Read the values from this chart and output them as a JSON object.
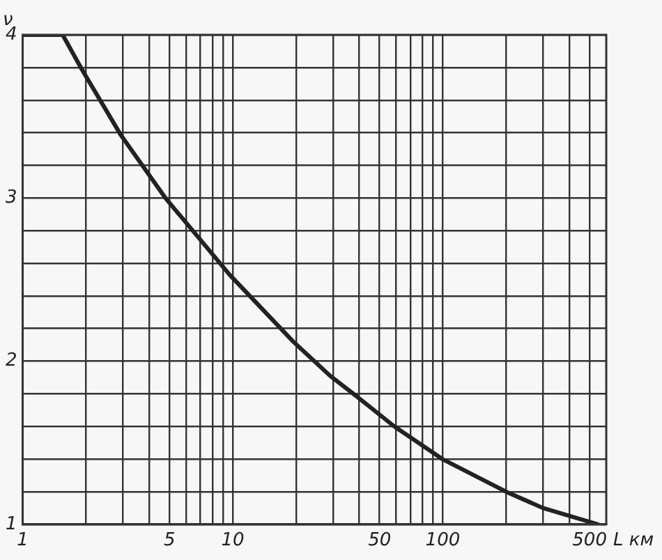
{
  "chart_data": {
    "type": "line",
    "xlabel": "L км",
    "ylabel": "ν",
    "log": "x",
    "x": [
      1,
      1.55,
      1.91,
      2.92,
      4.78,
      9.66,
      19.4,
      29.1,
      39.3,
      58.8,
      99.5,
      200,
      300,
      548
    ],
    "series": [
      {
        "color": "#222222",
        "values": [
          4,
          4,
          3.79,
          3.39,
          3.0,
          2.53,
          2.12,
          1.91,
          1.78,
          1.6,
          1.4,
          1.2,
          1.1,
          1.0
        ]
      }
    ],
    "xlim": [
      1,
      600
    ],
    "ylim": [
      1,
      4
    ],
    "xticks": [
      1,
      {
        "value": 2,
        "label": null
      },
      {
        "value": 3,
        "label": null
      },
      {
        "value": 4,
        "label": null
      },
      5,
      {
        "value": 6,
        "label": null
      },
      {
        "value": 7,
        "label": null
      },
      {
        "value": 8,
        "label": null
      },
      {
        "value": 9,
        "label": null
      },
      10,
      {
        "value": 20,
        "label": null
      },
      {
        "value": 30,
        "label": null
      },
      {
        "value": 40,
        "label": null
      },
      50,
      {
        "value": 60,
        "label": null
      },
      {
        "value": 70,
        "label": null
      },
      {
        "value": 80,
        "label": null
      },
      {
        "value": 90,
        "label": null
      },
      100,
      {
        "value": 200,
        "label": null
      },
      {
        "value": 300,
        "label": null
      },
      {
        "value": 400,
        "label": null
      },
      500
    ],
    "yticks": [
      1,
      {
        "value": 1.2,
        "label": null
      },
      {
        "value": 1.4,
        "label": null
      },
      {
        "value": 1.6,
        "label": null
      },
      {
        "value": 1.8,
        "label": null
      },
      2,
      {
        "value": 2.2,
        "label": null
      },
      {
        "value": 2.4,
        "label": null
      },
      {
        "value": 2.6,
        "label": null
      },
      {
        "value": 2.8,
        "label": null
      },
      3,
      {
        "value": 3.2,
        "label": null
      },
      {
        "value": 3.4,
        "label": null
      },
      {
        "value": 3.6,
        "label": null
      },
      {
        "value": 3.8,
        "label": null
      },
      4
    ],
    "grid": true,
    "marker": "none",
    "line_style": "solid",
    "legend": false
  }
}
